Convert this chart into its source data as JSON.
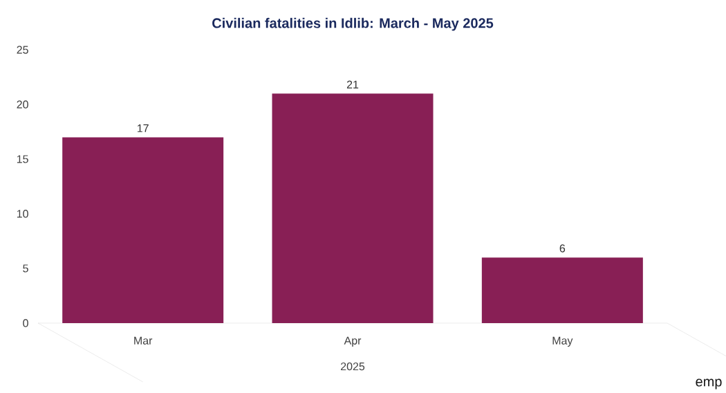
{
  "chart_data": {
    "type": "bar",
    "title": "Civilian fatalities in Idlib: March - May 2025",
    "categories": [
      "Mar",
      "Apr",
      "May"
    ],
    "values": [
      17,
      21,
      6
    ],
    "color": "#881f55",
    "xlabel": "2025",
    "ylim": [
      0,
      25
    ],
    "yticks": [
      0,
      5,
      10,
      15,
      20,
      25
    ],
    "data_labels": true,
    "grid": false,
    "annotations": [
      "emp"
    ]
  }
}
